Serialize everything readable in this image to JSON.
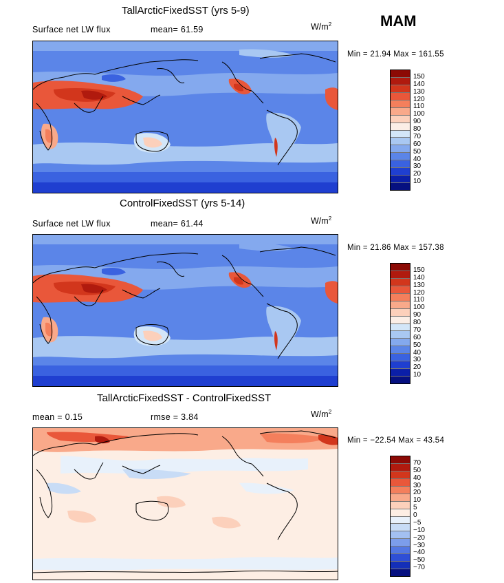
{
  "season": "MAM",
  "panels": [
    {
      "title": "TallArcticFixedSST (yrs 5-9)",
      "info_left": "Surface net LW flux",
      "info_mid": "mean=  61.59",
      "units": "W/m",
      "units_sup": "2",
      "minmax": "Min =  21.94 Max = 161.55",
      "colorbar": {
        "labels": [
          "150",
          "140",
          "130",
          "120",
          "110",
          "100",
          "90",
          "80",
          "70",
          "60",
          "50",
          "40",
          "30",
          "20",
          "10"
        ],
        "colors": [
          "#8c0a05",
          "#b01a0e",
          "#d2361c",
          "#e9573a",
          "#f47f5c",
          "#f9a98a",
          "#fcd0bb",
          "#fbeee6",
          "#d3e6f8",
          "#a9c8f2",
          "#84a9ee",
          "#5b85e8",
          "#3a62e0",
          "#1f3fd0",
          "#0b1fa8",
          "#061080"
        ]
      }
    },
    {
      "title": "ControlFixedSST (yrs 5-14)",
      "info_left": "Surface net LW flux",
      "info_mid": "mean=  61.44",
      "units": "W/m",
      "units_sup": "2",
      "minmax": "Min =  21.86 Max = 157.38",
      "colorbar": {
        "labels": [
          "150",
          "140",
          "130",
          "120",
          "110",
          "100",
          "90",
          "80",
          "70",
          "60",
          "50",
          "40",
          "30",
          "20",
          "10"
        ],
        "colors": [
          "#8c0a05",
          "#b01a0e",
          "#d2361c",
          "#e9573a",
          "#f47f5c",
          "#f9a98a",
          "#fcd0bb",
          "#fbeee6",
          "#d3e6f8",
          "#a9c8f2",
          "#84a9ee",
          "#5b85e8",
          "#3a62e0",
          "#1f3fd0",
          "#0b1fa8",
          "#061080"
        ]
      }
    },
    {
      "title": "TallArcticFixedSST - ControlFixedSST",
      "info_left": "mean =   0.15",
      "info_mid": "rmse =   3.84",
      "units": "W/m",
      "units_sup": "2",
      "minmax": "Min = −22.54 Max =  43.54",
      "colorbar": {
        "labels": [
          "70",
          "50",
          "40",
          "30",
          "20",
          "10",
          "5",
          "0",
          "−5",
          "−10",
          "−20",
          "−30",
          "−40",
          "−50",
          "−70"
        ],
        "colors": [
          "#8c0a05",
          "#b01a0e",
          "#d2361c",
          "#e9573a",
          "#f47f5c",
          "#f9a98a",
          "#fcd0bb",
          "#fdeee4",
          "#e8f1fb",
          "#c8dcf6",
          "#a3c0f1",
          "#7c9deb",
          "#5377e3",
          "#2f4fd6",
          "#142fb8",
          "#061080"
        ]
      }
    }
  ]
}
